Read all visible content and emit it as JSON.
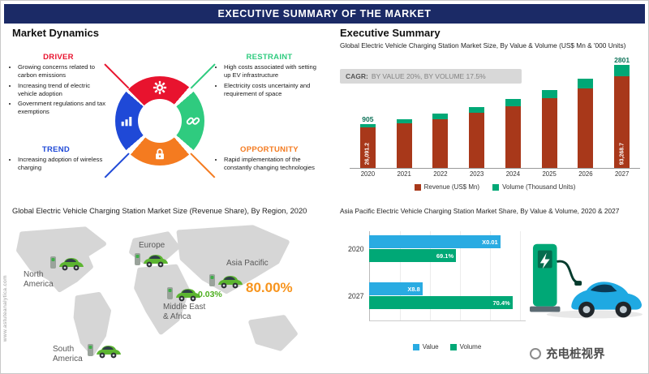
{
  "banner": {
    "title": "EXECUTIVE SUMMARY OF THE MARKET"
  },
  "market_dynamics": {
    "heading": "Market Dynamics",
    "quadrants": [
      {
        "label": "DRIVER",
        "color": "#E8132E",
        "bullets": [
          "Growing concerns related to carbon emissions",
          "Increasing trend of electric vehicle adoption",
          "Government regulations and tax exemptions"
        ]
      },
      {
        "label": "RESTRAINT",
        "color": "#2FCB7F",
        "bullets": [
          "High costs associated with setting up EV infrastructure",
          "Electricity costs uncertainty and requirement of space"
        ]
      },
      {
        "label": "TREND",
        "color": "#1F49D7",
        "bullets": [
          "Increasing adoption of wireless charging"
        ]
      },
      {
        "label": "OPPORTUNITY",
        "color": "#F47B20",
        "bullets": [
          "Rapid implementation of the constantly changing technologies"
        ]
      }
    ]
  },
  "executive_summary": {
    "heading": "Executive Summary",
    "cagr_prefix": "CAGR:",
    "cagr_text": "BY VALUE 20%, BY VOLUME 17.5%"
  },
  "chart_data": [
    {
      "type": "bar",
      "title": "Global Electric Vehicle Charging Station Market Size, By Value & Volume (US$ Mn & '000 Units)",
      "categories": [
        "2020",
        "2021",
        "2022",
        "2023",
        "2024",
        "2025",
        "2026",
        "2027"
      ],
      "series": [
        {
          "name": "Revenue (US$ Mn)",
          "color": "#A8381A",
          "values": [
            26091.2,
            31309.4,
            37571.3,
            45085.6,
            54102.7,
            64923.2,
            77907.9,
            93268.7
          ],
          "value_labels": {
            "2020": "26,091.2",
            "2027": "93,268.7"
          }
        },
        {
          "name": "Volume (Thousand Units)",
          "color": "#00A876",
          "values": [
            905,
            1063,
            1249,
            1468,
            1725,
            2027,
            2382,
            2801
          ],
          "value_labels": {
            "2020": "905",
            "2027": "2801"
          }
        }
      ],
      "annotation": "CAGR: BY VALUE 20%, BY VOLUME 17.5%",
      "legend_position": "bottom",
      "grid": false
    },
    {
      "type": "bar-horizontal",
      "title": "Asia Pacific Electric Vehicle Charging Station Market Share, By Value & Volume, 2020 & 2027",
      "categories": [
        "2020",
        "2027"
      ],
      "series": [
        {
          "name": "Value",
          "color": "#29ABE2",
          "bar_labels": [
            "X0.01",
            "X8.8"
          ],
          "lengths_pct": [
            86,
            35
          ]
        },
        {
          "name": "Volume",
          "color": "#00A876",
          "bar_labels": [
            "69.1%",
            "70.4%"
          ],
          "lengths_pct": [
            57,
            94
          ]
        }
      ],
      "legend_position": "bottom",
      "grid": true
    }
  ],
  "region_map": {
    "title": "Global Electric Vehicle Charging Station Market Size (Revenue Share), By Region, 2020",
    "regions": [
      {
        "name": "North America",
        "name_lines": [
          "North",
          "America"
        ]
      },
      {
        "name": "Europe"
      },
      {
        "name": "Asia Pacific",
        "share": "80.00%"
      },
      {
        "name": "Middle East & Africa",
        "name_lines": [
          "Middle East",
          "& Africa"
        ],
        "share": "0.03%"
      },
      {
        "name": "South America",
        "name_lines": [
          "South",
          "America"
        ]
      }
    ]
  },
  "footer": {
    "website": "www.astuteanalytica.com",
    "watermark": "充电桩视界"
  }
}
